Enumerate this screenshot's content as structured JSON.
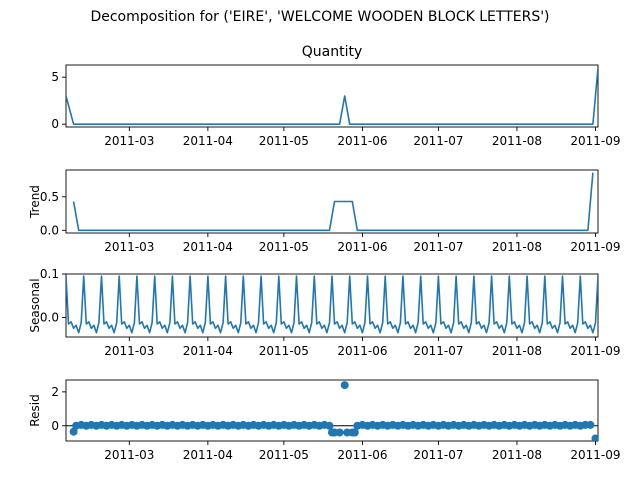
{
  "figure": {
    "suptitle": "Decomposition for ('EIRE', 'WELCOME  WOODEN BLOCK LETTERS')"
  },
  "colors": {
    "line": "#1f77b4",
    "axes": "#000000",
    "background": "#ffffff"
  },
  "chart_data": [
    {
      "type": "line",
      "title": "Quantity",
      "ylabel": "",
      "x_tick_labels": [
        "2011-03",
        "2011-04",
        "2011-05",
        "2011-06",
        "2011-07",
        "2011-08",
        "2011-09"
      ],
      "y_tick_labels": [
        "0",
        "5"
      ],
      "ylim": [
        -0.3,
        6.3
      ],
      "xlim_days": [
        0,
        210
      ],
      "series": [
        {
          "points": [
            [
              0,
              3
            ],
            [
              3,
              0
            ],
            [
              108,
              0
            ],
            [
              110,
              3
            ],
            [
              112,
              0
            ],
            [
              208,
              0
            ],
            [
              210,
              6
            ]
          ]
        }
      ]
    },
    {
      "type": "line",
      "title": "",
      "ylabel": "Trend",
      "x_tick_labels": [
        "2011-03",
        "2011-04",
        "2011-05",
        "2011-06",
        "2011-07",
        "2011-08",
        "2011-09"
      ],
      "y_tick_labels": [
        "0.0",
        "0.5"
      ],
      "ylim": [
        -0.04,
        0.9
      ],
      "xlim_days": [
        0,
        210
      ],
      "series": [
        {
          "points": [
            [
              3,
              0.43
            ],
            [
              5,
              0
            ],
            [
              104,
              0
            ],
            [
              106,
              0.43
            ],
            [
              113,
              0.43
            ],
            [
              115,
              0
            ],
            [
              206,
              0
            ],
            [
              208,
              0.86
            ]
          ]
        }
      ]
    },
    {
      "type": "line",
      "title": "",
      "ylabel": "Seasonal",
      "x_tick_labels": [
        "2011-03",
        "2011-04",
        "2011-05",
        "2011-06",
        "2011-07",
        "2011-08",
        "2011-09"
      ],
      "y_tick_labels": [
        "0.0",
        "0.1"
      ],
      "ylim": [
        -0.045,
        0.1
      ],
      "xlim_days": [
        0,
        210
      ],
      "period_days": 7,
      "pattern": [
        0.095,
        -0.015,
        -0.01,
        -0.025,
        -0.018,
        -0.035,
        -0.012
      ],
      "start_phase": 0,
      "series": [
        {
          "points": []
        }
      ]
    },
    {
      "type": "scatter",
      "title": "",
      "ylabel": "Resid",
      "x_tick_labels": [
        "2011-03",
        "2011-04",
        "2011-05",
        "2011-06",
        "2011-07",
        "2011-08",
        "2011-09"
      ],
      "y_tick_labels": [
        "0",
        "2"
      ],
      "ylim": [
        -0.9,
        2.7
      ],
      "xlim_days": [
        0,
        210
      ],
      "baseline": 0,
      "series": [
        {
          "points": [
            [
              3,
              -0.35
            ],
            [
              4,
              0
            ],
            [
              6,
              0.05
            ],
            [
              8,
              0
            ],
            [
              10,
              0.05
            ],
            [
              12,
              0
            ],
            [
              14,
              0.05
            ],
            [
              16,
              0
            ],
            [
              18,
              0.05
            ],
            [
              20,
              0
            ],
            [
              22,
              0.05
            ],
            [
              24,
              0
            ],
            [
              26,
              0.05
            ],
            [
              28,
              0
            ],
            [
              30,
              0.05
            ],
            [
              32,
              0
            ],
            [
              34,
              0.05
            ],
            [
              36,
              0
            ],
            [
              38,
              0.05
            ],
            [
              40,
              0
            ],
            [
              42,
              0.05
            ],
            [
              44,
              0
            ],
            [
              46,
              0.05
            ],
            [
              48,
              0
            ],
            [
              50,
              0.05
            ],
            [
              52,
              0
            ],
            [
              54,
              0.05
            ],
            [
              56,
              0
            ],
            [
              58,
              0.05
            ],
            [
              60,
              0
            ],
            [
              62,
              0.05
            ],
            [
              64,
              0
            ],
            [
              66,
              0.05
            ],
            [
              68,
              0
            ],
            [
              70,
              0.05
            ],
            [
              72,
              0
            ],
            [
              74,
              0.05
            ],
            [
              76,
              0
            ],
            [
              78,
              0.05
            ],
            [
              80,
              0
            ],
            [
              82,
              0.05
            ],
            [
              84,
              0
            ],
            [
              86,
              0.05
            ],
            [
              88,
              0
            ],
            [
              90,
              0.05
            ],
            [
              92,
              0
            ],
            [
              94,
              0.05
            ],
            [
              96,
              0
            ],
            [
              98,
              0.05
            ],
            [
              100,
              0
            ],
            [
              102,
              0.05
            ],
            [
              104,
              0
            ],
            [
              105,
              -0.4
            ],
            [
              106,
              -0.4
            ],
            [
              108,
              -0.4
            ],
            [
              110,
              2.4
            ],
            [
              111,
              -0.4
            ],
            [
              113,
              -0.4
            ],
            [
              114,
              -0.4
            ],
            [
              115,
              0
            ],
            [
              117,
              0.05
            ],
            [
              119,
              0
            ],
            [
              121,
              0.05
            ],
            [
              123,
              0
            ],
            [
              125,
              0.05
            ],
            [
              127,
              0
            ],
            [
              129,
              0.05
            ],
            [
              131,
              0
            ],
            [
              133,
              0.05
            ],
            [
              135,
              0
            ],
            [
              137,
              0.05
            ],
            [
              139,
              0
            ],
            [
              141,
              0.05
            ],
            [
              143,
              0
            ],
            [
              145,
              0.05
            ],
            [
              147,
              0
            ],
            [
              149,
              0.05
            ],
            [
              151,
              0
            ],
            [
              153,
              0.05
            ],
            [
              155,
              0
            ],
            [
              157,
              0.05
            ],
            [
              159,
              0
            ],
            [
              161,
              0.05
            ],
            [
              163,
              0
            ],
            [
              165,
              0.05
            ],
            [
              167,
              0
            ],
            [
              169,
              0.05
            ],
            [
              171,
              0
            ],
            [
              173,
              0.05
            ],
            [
              175,
              0
            ],
            [
              177,
              0.05
            ],
            [
              179,
              0
            ],
            [
              181,
              0.05
            ],
            [
              183,
              0
            ],
            [
              185,
              0.05
            ],
            [
              187,
              0
            ],
            [
              189,
              0.05
            ],
            [
              191,
              0
            ],
            [
              193,
              0.05
            ],
            [
              195,
              0
            ],
            [
              197,
              0.05
            ],
            [
              199,
              0
            ],
            [
              201,
              0.05
            ],
            [
              203,
              0
            ],
            [
              205,
              0.05
            ],
            [
              207,
              0.05
            ],
            [
              209,
              -0.75
            ]
          ]
        }
      ]
    }
  ]
}
